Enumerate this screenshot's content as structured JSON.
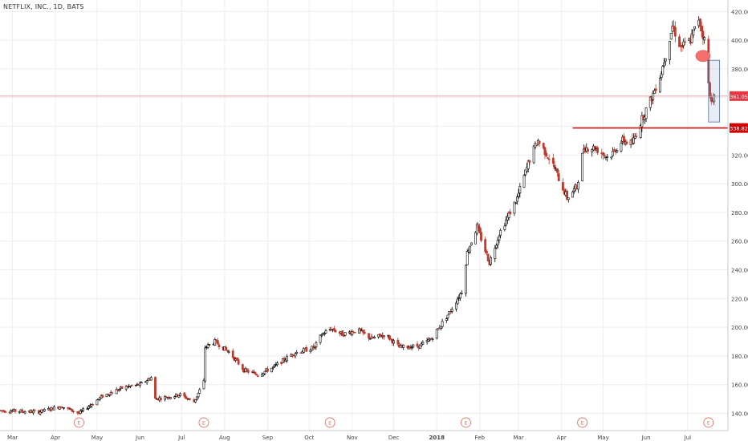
{
  "chart_data": {
    "type": "candlestick",
    "title": "NETFLIX, INC., 1D, BATS",
    "ylim": [
      128,
      428
    ],
    "y_ticks": [
      140,
      160,
      180,
      200,
      220,
      240,
      260,
      280,
      300,
      320,
      340,
      360,
      380,
      400,
      420
    ],
    "y_tick_labels": [
      "140.00",
      "160.00",
      "180.00",
      "200.00",
      "220.00",
      "240.00",
      "260.00",
      "280.00",
      "300.00",
      "320.00",
      "340.00",
      "360.00",
      "380.00",
      "400.00",
      "420.00"
    ],
    "x_ticks": [
      {
        "label": "Mar",
        "date": "2017-03-01"
      },
      {
        "label": "Apr",
        "date": "2017-04-01"
      },
      {
        "label": "May",
        "date": "2017-05-01"
      },
      {
        "label": "Jun",
        "date": "2017-06-01"
      },
      {
        "label": "Jul",
        "date": "2017-07-01"
      },
      {
        "label": "Aug",
        "date": "2017-08-01"
      },
      {
        "label": "Sep",
        "date": "2017-09-01"
      },
      {
        "label": "Oct",
        "date": "2017-10-01"
      },
      {
        "label": "Nov",
        "date": "2017-11-01"
      },
      {
        "label": "Dec",
        "date": "2017-12-01"
      },
      {
        "label": "2018",
        "date": "2018-01-01",
        "bold": true
      },
      {
        "label": "Feb",
        "date": "2018-02-01"
      },
      {
        "label": "Mar",
        "date": "2018-03-01"
      },
      {
        "label": "Apr",
        "date": "2018-04-01"
      },
      {
        "label": "May",
        "date": "2018-05-01"
      },
      {
        "label": "Jun",
        "date": "2018-06-01"
      },
      {
        "label": "Jul",
        "date": "2018-07-01"
      }
    ],
    "xlim": [
      "2017-02-20",
      "2018-07-30"
    ],
    "up_color": "#000000",
    "down_color": "#c0392b",
    "key_points": [
      [
        "2017-02-20",
        142
      ],
      [
        "2017-03-20",
        141
      ],
      [
        "2017-04-05",
        145
      ],
      [
        "2017-04-18",
        140
      ],
      [
        "2017-04-25",
        145
      ],
      [
        "2017-05-05",
        152
      ],
      [
        "2017-05-20",
        158
      ],
      [
        "2017-06-01",
        160
      ],
      [
        "2017-06-09",
        165
      ],
      [
        "2017-06-12",
        150
      ],
      [
        "2017-06-30",
        153
      ],
      [
        "2017-07-10",
        148
      ],
      [
        "2017-07-17",
        162
      ],
      [
        "2017-07-18",
        186
      ],
      [
        "2017-07-25",
        190
      ],
      [
        "2017-08-05",
        182
      ],
      [
        "2017-08-15",
        170
      ],
      [
        "2017-08-25",
        167
      ],
      [
        "2017-09-05",
        172
      ],
      [
        "2017-09-20",
        182
      ],
      [
        "2017-10-05",
        186
      ],
      [
        "2017-10-10",
        195
      ],
      [
        "2017-10-17",
        199
      ],
      [
        "2017-10-25",
        195
      ],
      [
        "2017-11-05",
        198
      ],
      [
        "2017-11-15",
        192
      ],
      [
        "2017-11-25",
        195
      ],
      [
        "2017-12-05",
        186
      ],
      [
        "2017-12-20",
        187
      ],
      [
        "2017-12-28",
        192
      ],
      [
        "2018-01-10",
        210
      ],
      [
        "2018-01-19",
        225
      ],
      [
        "2018-01-23",
        252
      ],
      [
        "2018-01-30",
        270
      ],
      [
        "2018-02-08",
        245
      ],
      [
        "2018-02-15",
        265
      ],
      [
        "2018-02-28",
        290
      ],
      [
        "2018-03-10",
        320
      ],
      [
        "2018-03-15",
        330
      ],
      [
        "2018-03-25",
        315
      ],
      [
        "2018-04-05",
        290
      ],
      [
        "2018-04-12",
        298
      ],
      [
        "2018-04-17",
        325
      ],
      [
        "2018-04-25",
        325
      ],
      [
        "2018-05-05",
        318
      ],
      [
        "2018-05-15",
        330
      ],
      [
        "2018-05-22",
        328
      ],
      [
        "2018-05-29",
        345
      ],
      [
        "2018-06-05",
        360
      ],
      [
        "2018-06-12",
        378
      ],
      [
        "2018-06-20",
        410
      ],
      [
        "2018-06-26",
        395
      ],
      [
        "2018-07-03",
        400
      ],
      [
        "2018-07-09",
        415
      ],
      [
        "2018-07-13",
        400
      ],
      [
        "2018-07-17",
        360
      ],
      [
        "2018-07-20",
        360
      ]
    ],
    "annotations": {
      "price_line": {
        "value": 361.05,
        "label": "361.05",
        "color": "#f08080"
      },
      "support_line": {
        "value": 338.82,
        "label": "338.82",
        "color": "#e00000",
        "from_date": "2018-04-09"
      },
      "highlight_box": {
        "from_date": "2018-07-16",
        "to_date": "2018-07-24",
        "y_from": 343,
        "y_to": 386
      },
      "marker_ellipse": {
        "date": "2018-07-12",
        "value": 389,
        "color": "#f07070"
      },
      "earnings_markers": [
        {
          "label": "E",
          "date": "2017-04-18"
        },
        {
          "label": "E",
          "date": "2017-07-17"
        },
        {
          "label": "E",
          "date": "2017-10-16"
        },
        {
          "label": "E",
          "date": "2018-01-22"
        },
        {
          "label": "E",
          "date": "2018-04-16"
        },
        {
          "label": "E",
          "date": "2018-07-16"
        }
      ]
    },
    "grid": true
  }
}
